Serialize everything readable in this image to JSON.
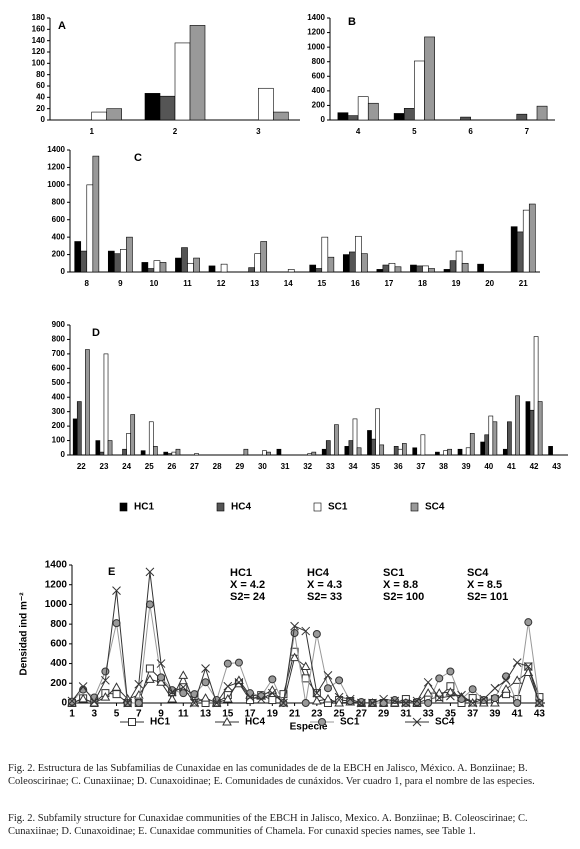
{
  "chart_data": [
    {
      "type": "bar",
      "title": "A",
      "categories": [
        "1",
        "2",
        "3"
      ],
      "ylim": [
        0,
        180
      ],
      "yticks": [
        0,
        20,
        40,
        60,
        80,
        100,
        120,
        140,
        160,
        180
      ],
      "series": [
        {
          "name": "HC1",
          "color": "#000000",
          "values": [
            0,
            47,
            0
          ]
        },
        {
          "name": "HC4",
          "color": "#555555",
          "values": [
            0,
            42,
            0
          ]
        },
        {
          "name": "SC1",
          "color": "#ffffff",
          "values": [
            14,
            136,
            56
          ]
        },
        {
          "name": "SC4",
          "color": "#999999",
          "values": [
            20,
            167,
            14
          ]
        }
      ]
    },
    {
      "type": "bar",
      "title": "B",
      "categories": [
        "4",
        "5",
        "6",
        "7"
      ],
      "ylim": [
        0,
        1400
      ],
      "yticks": [
        0,
        200,
        400,
        600,
        800,
        1000,
        1200,
        1400
      ],
      "series": [
        {
          "name": "HC1",
          "color": "#000000",
          "values": [
            100,
            90,
            0,
            0
          ]
        },
        {
          "name": "HC4",
          "color": "#555555",
          "values": [
            60,
            160,
            40,
            80
          ]
        },
        {
          "name": "SC1",
          "color": "#ffffff",
          "values": [
            320,
            810,
            0,
            0
          ]
        },
        {
          "name": "SC4",
          "color": "#999999",
          "values": [
            230,
            1140,
            0,
            190
          ]
        }
      ]
    },
    {
      "type": "bar",
      "title": "C",
      "categories": [
        "8",
        "9",
        "10",
        "11",
        "12",
        "13",
        "14",
        "15",
        "16",
        "17",
        "18",
        "19",
        "20",
        "21"
      ],
      "ylim": [
        0,
        1400
      ],
      "yticks": [
        0,
        200,
        400,
        600,
        800,
        1000,
        1200,
        1400
      ],
      "series": [
        {
          "name": "HC1",
          "color": "#000000",
          "values": [
            350,
            240,
            110,
            160,
            70,
            0,
            0,
            80,
            200,
            30,
            80,
            30,
            90,
            520
          ]
        },
        {
          "name": "HC4",
          "color": "#555555",
          "values": [
            240,
            210,
            40,
            280,
            0,
            50,
            0,
            40,
            230,
            80,
            70,
            130,
            0,
            460
          ]
        },
        {
          "name": "SC1",
          "color": "#ffffff",
          "values": [
            1000,
            260,
            130,
            100,
            90,
            210,
            30,
            400,
            410,
            100,
            70,
            240,
            0,
            710
          ]
        },
        {
          "name": "SC4",
          "color": "#999999",
          "values": [
            1330,
            400,
            110,
            160,
            0,
            350,
            0,
            170,
            210,
            60,
            40,
            100,
            0,
            780
          ]
        }
      ]
    },
    {
      "type": "bar",
      "title": "D",
      "categories": [
        "22",
        "23",
        "24",
        "25",
        "26",
        "27",
        "28",
        "29",
        "30",
        "31",
        "32",
        "33",
        "34",
        "35",
        "36",
        "37",
        "38",
        "39",
        "40",
        "41",
        "42",
        "43"
      ],
      "ylim": [
        0,
        900
      ],
      "yticks": [
        0,
        100,
        200,
        300,
        400,
        500,
        600,
        700,
        800,
        900
      ],
      "series": [
        {
          "name": "HC1",
          "color": "#000000",
          "values": [
            250,
            100,
            0,
            30,
            20,
            0,
            0,
            0,
            0,
            40,
            0,
            40,
            60,
            170,
            0,
            50,
            20,
            40,
            90,
            40,
            370,
            60
          ]
        },
        {
          "name": "HC4",
          "color": "#555555",
          "values": [
            370,
            20,
            40,
            0,
            10,
            0,
            0,
            0,
            0,
            0,
            0,
            100,
            100,
            110,
            60,
            0,
            0,
            0,
            140,
            230,
            310,
            0
          ]
        },
        {
          "name": "SC1",
          "color": "#ffffff",
          "values": [
            0,
            700,
            150,
            230,
            20,
            10,
            0,
            0,
            30,
            0,
            10,
            0,
            250,
            320,
            40,
            140,
            30,
            50,
            270,
            0,
            820,
            0
          ]
        },
        {
          "name": "SC4",
          "color": "#999999",
          "values": [
            730,
            100,
            280,
            60,
            40,
            0,
            0,
            40,
            20,
            0,
            20,
            210,
            50,
            70,
            80,
            0,
            40,
            150,
            230,
            410,
            370,
            0
          ]
        }
      ]
    },
    {
      "type": "line",
      "title": "E",
      "x_label": "Especie",
      "y_label": "Densidad ind m⁻²",
      "x": [
        1,
        2,
        3,
        4,
        5,
        6,
        7,
        8,
        9,
        10,
        11,
        12,
        13,
        14,
        15,
        16,
        17,
        18,
        19,
        20,
        21,
        22,
        23,
        24,
        25,
        26,
        27,
        28,
        29,
        30,
        31,
        32,
        33,
        34,
        35,
        36,
        37,
        38,
        39,
        40,
        41,
        42,
        43
      ],
      "xlim": [
        1,
        43.5
      ],
      "xticks": [
        1,
        3,
        5,
        7,
        9,
        11,
        13,
        15,
        17,
        19,
        21,
        23,
        25,
        27,
        29,
        31,
        33,
        35,
        37,
        39,
        41,
        43
      ],
      "ylim": [
        0,
        1400
      ],
      "yticks": [
        0,
        200,
        400,
        600,
        800,
        1000,
        1200,
        1400
      ],
      "annotations": [
        [
          "HC1",
          "X = 4.2",
          "S2= 24"
        ],
        [
          "HC4",
          "X = 4.3",
          "S2= 33"
        ],
        [
          "SC1",
          "X = 8.8",
          "S2= 100"
        ],
        [
          "SC4",
          "X = 8.5",
          "S2= 101"
        ]
      ],
      "series": [
        {
          "name": "HC1",
          "color": "#333333",
          "marker": "square",
          "values": [
            0,
            47,
            0,
            100,
            90,
            0,
            0,
            350,
            240,
            110,
            160,
            70,
            0,
            0,
            80,
            200,
            30,
            80,
            30,
            90,
            520,
            250,
            100,
            0,
            30,
            20,
            0,
            0,
            0,
            0,
            40,
            0,
            40,
            60,
            170,
            0,
            50,
            20,
            40,
            90,
            40,
            370,
            60
          ]
        },
        {
          "name": "HC4",
          "color": "#333333",
          "marker": "triangle",
          "values": [
            0,
            42,
            0,
            60,
            160,
            40,
            80,
            240,
            210,
            40,
            280,
            0,
            50,
            0,
            40,
            230,
            80,
            70,
            130,
            0,
            460,
            370,
            20,
            40,
            0,
            10,
            0,
            0,
            0,
            0,
            0,
            0,
            100,
            100,
            110,
            60,
            0,
            0,
            0,
            140,
            230,
            310,
            0
          ]
        },
        {
          "name": "SC1",
          "color": "#999999",
          "marker": "circle",
          "values": [
            14,
            136,
            56,
            320,
            810,
            0,
            0,
            1000,
            260,
            130,
            100,
            90,
            210,
            30,
            400,
            410,
            100,
            70,
            240,
            0,
            710,
            0,
            700,
            150,
            230,
            20,
            10,
            0,
            0,
            30,
            0,
            10,
            0,
            250,
            320,
            40,
            140,
            30,
            50,
            270,
            0,
            820,
            0
          ]
        },
        {
          "name": "SC4",
          "color": "#333333",
          "marker": "x",
          "values": [
            20,
            167,
            14,
            230,
            1140,
            0,
            190,
            1330,
            400,
            110,
            160,
            0,
            350,
            0,
            170,
            210,
            60,
            40,
            100,
            0,
            780,
            730,
            100,
            280,
            60,
            40,
            0,
            0,
            40,
            20,
            0,
            20,
            210,
            50,
            70,
            80,
            0,
            40,
            150,
            230,
            410,
            370,
            0
          ]
        }
      ]
    }
  ],
  "captions": [
    "Fig. 2. Estructura de las Subfamilias de Cunaxidae en las comunidades de de la EBCH en Jalisco, México. A. Bonziinae; B. Coleoscirinae; C. Cunaxiinae; D. Cunaxoidinae; E. Comunidades de cunáxidos. Ver cuadro 1, para el nombre de las especies.",
    "Fig. 2. Subfamily structure for Cunaxidae communities of the EBCH in Jalisco, Mexico. A. Bonziinae; B. Coleoscirinae; C. Cunaxiinae; D. Cunaxoidinae; E. Cunaxidae communities of Chamela. For cunaxid species names, see Table 1."
  ]
}
